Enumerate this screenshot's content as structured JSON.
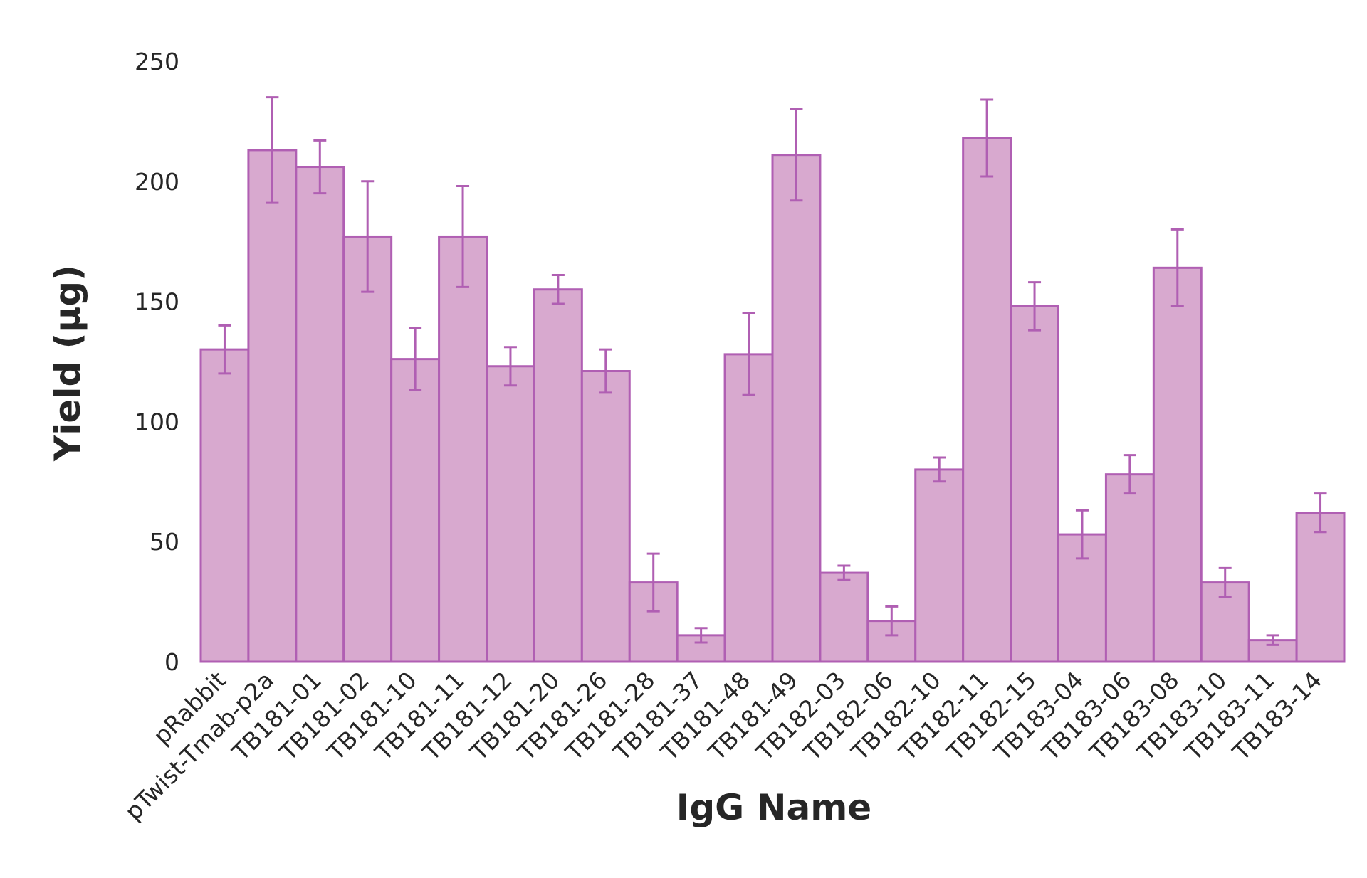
{
  "chart_data": {
    "type": "bar",
    "xlabel": "IgG Name",
    "ylabel": "Yield (µg)",
    "ylim": [
      0,
      250
    ],
    "yticks": [
      0,
      50,
      100,
      150,
      200,
      250
    ],
    "grid": false,
    "categories": [
      "pRabbit",
      "pTwist-Tmab-p2a",
      "TB181-01",
      "TB181-02",
      "TB181-10",
      "TB181-11",
      "TB181-12",
      "TB181-20",
      "TB181-26",
      "TB181-28",
      "TB181-37",
      "TB181-48",
      "TB181-49",
      "TB182-03",
      "TB182-06",
      "TB182-10",
      "TB182-11",
      "TB182-15",
      "TB183-04",
      "TB183-06",
      "TB183-08",
      "TB183-10",
      "TB183-11",
      "TB183-14"
    ],
    "values": [
      130,
      213,
      206,
      177,
      126,
      177,
      123,
      155,
      121,
      33,
      11,
      128,
      211,
      37,
      17,
      80,
      218,
      148,
      53,
      78,
      164,
      33,
      9,
      62
    ],
    "errors": [
      10,
      22,
      11,
      23,
      13,
      21,
      8,
      6,
      9,
      12,
      3,
      17,
      19,
      3,
      6,
      5,
      16,
      10,
      10,
      8,
      16,
      6,
      2,
      8
    ],
    "colors": {
      "bar_fill": "#d8a9cf",
      "bar_edge": "#b05fb3",
      "error_bar": "#b05fb3",
      "text": "#262626"
    }
  }
}
